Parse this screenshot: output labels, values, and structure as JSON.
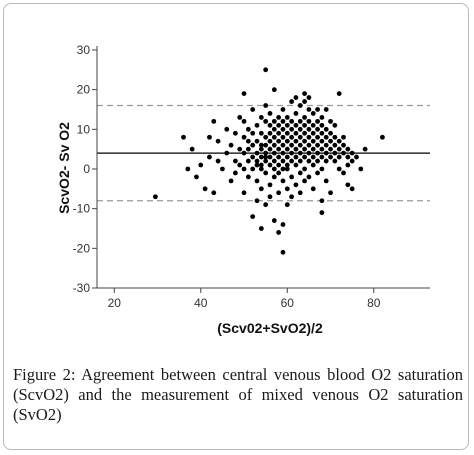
{
  "caption": "Figure 2: Agreement between central venous blood O2 saturation (ScvO2) and the measurement of mixed venous O2 saturation (SvO2)",
  "colors": {
    "points": "#000000",
    "mean_line": "#000000",
    "limit_lines": "#9a9a9a",
    "axis": "#444444"
  },
  "chart_data": {
    "type": "scatter",
    "title": "",
    "xlabel": "(Scv02+SvO2)/2",
    "ylabel": "ScvO2- Sv O2",
    "xlim": [
      16,
      93
    ],
    "ylim": [
      -30,
      31
    ],
    "xticks": [
      20,
      40,
      60,
      80
    ],
    "yticks": [
      -30,
      -20,
      -10,
      0,
      10,
      20,
      30
    ],
    "grid": false,
    "reference_lines": {
      "mean": 4,
      "upper_limit": 16,
      "lower_limit": -8
    },
    "points": [
      [
        29.5,
        -7
      ],
      [
        36,
        8
      ],
      [
        37,
        0
      ],
      [
        38,
        5
      ],
      [
        39,
        -2
      ],
      [
        40,
        1
      ],
      [
        41,
        -5
      ],
      [
        42,
        8
      ],
      [
        42,
        3
      ],
      [
        43,
        12
      ],
      [
        43,
        -6
      ],
      [
        44,
        2
      ],
      [
        44,
        7
      ],
      [
        45,
        0
      ],
      [
        46,
        4
      ],
      [
        46,
        10
      ],
      [
        47,
        -3
      ],
      [
        47,
        6
      ],
      [
        48,
        2
      ],
      [
        48,
        9
      ],
      [
        48,
        -1
      ],
      [
        49,
        5
      ],
      [
        49,
        13
      ],
      [
        49,
        1
      ],
      [
        50,
        19
      ],
      [
        50,
        0
      ],
      [
        50,
        4
      ],
      [
        50,
        8
      ],
      [
        50,
        -6
      ],
      [
        50,
        12
      ],
      [
        51,
        2
      ],
      [
        51,
        7
      ],
      [
        51,
        -2
      ],
      [
        51,
        10
      ],
      [
        51,
        5
      ],
      [
        52,
        -12
      ],
      [
        52,
        3
      ],
      [
        52,
        6
      ],
      [
        52,
        0
      ],
      [
        52,
        9
      ],
      [
        52,
        15
      ],
      [
        53,
        -8
      ],
      [
        53,
        1
      ],
      [
        53,
        4
      ],
      [
        53,
        7
      ],
      [
        53,
        11
      ],
      [
        53,
        -3
      ],
      [
        53,
        2
      ],
      [
        54,
        -15
      ],
      [
        54,
        3
      ],
      [
        54,
        6
      ],
      [
        54,
        9
      ],
      [
        54,
        1
      ],
      [
        54,
        -5
      ],
      [
        54,
        13
      ],
      [
        54,
        0
      ],
      [
        54,
        5
      ],
      [
        55,
        25
      ],
      [
        55,
        -9
      ],
      [
        55,
        4
      ],
      [
        55,
        8
      ],
      [
        55,
        12
      ],
      [
        55,
        2
      ],
      [
        55,
        -1
      ],
      [
        55,
        6
      ],
      [
        55,
        16
      ],
      [
        55,
        3
      ],
      [
        56,
        -4
      ],
      [
        56,
        5
      ],
      [
        56,
        9
      ],
      [
        56,
        1
      ],
      [
        56,
        14
      ],
      [
        56,
        7
      ],
      [
        56,
        -7
      ],
      [
        56,
        3
      ],
      [
        56,
        11
      ],
      [
        57,
        20
      ],
      [
        57,
        -13
      ],
      [
        57,
        2
      ],
      [
        57,
        6
      ],
      [
        57,
        10
      ],
      [
        57,
        0
      ],
      [
        57,
        4
      ],
      [
        57,
        8
      ],
      [
        57,
        -2
      ],
      [
        57,
        12
      ],
      [
        58,
        -16
      ],
      [
        58,
        3
      ],
      [
        58,
        7
      ],
      [
        58,
        1
      ],
      [
        58,
        11
      ],
      [
        58,
        5
      ],
      [
        58,
        -6
      ],
      [
        58,
        9
      ],
      [
        58,
        13
      ],
      [
        58,
        -1
      ],
      [
        59,
        -21
      ],
      [
        59,
        -14
      ],
      [
        59,
        4
      ],
      [
        59,
        8
      ],
      [
        59,
        0
      ],
      [
        59,
        12
      ],
      [
        59,
        2
      ],
      [
        59,
        6
      ],
      [
        59,
        -3
      ],
      [
        59,
        10
      ],
      [
        59,
        15
      ],
      [
        60,
        -9
      ],
      [
        60,
        5
      ],
      [
        60,
        1
      ],
      [
        60,
        9
      ],
      [
        60,
        3
      ],
      [
        60,
        13
      ],
      [
        60,
        -5
      ],
      [
        60,
        7
      ],
      [
        60,
        11
      ],
      [
        60,
        0
      ],
      [
        61,
        -2
      ],
      [
        61,
        4
      ],
      [
        61,
        8
      ],
      [
        61,
        12
      ],
      [
        61,
        6
      ],
      [
        61,
        2
      ],
      [
        61,
        17
      ],
      [
        61,
        -7
      ],
      [
        61,
        10
      ],
      [
        62,
        3
      ],
      [
        62,
        7
      ],
      [
        62,
        11
      ],
      [
        62,
        1
      ],
      [
        62,
        5
      ],
      [
        62,
        14
      ],
      [
        62,
        -4
      ],
      [
        62,
        9
      ],
      [
        62,
        18
      ],
      [
        63,
        -1
      ],
      [
        63,
        4
      ],
      [
        63,
        8
      ],
      [
        63,
        12
      ],
      [
        63,
        6
      ],
      [
        63,
        2
      ],
      [
        63,
        16
      ],
      [
        63,
        10
      ],
      [
        63,
        -6
      ],
      [
        64,
        19
      ],
      [
        64,
        5
      ],
      [
        64,
        9
      ],
      [
        64,
        3
      ],
      [
        64,
        13
      ],
      [
        64,
        7
      ],
      [
        64,
        0
      ],
      [
        64,
        11
      ],
      [
        64,
        -3
      ],
      [
        64,
        17
      ],
      [
        65,
        4
      ],
      [
        65,
        8
      ],
      [
        65,
        12
      ],
      [
        65,
        2
      ],
      [
        65,
        6
      ],
      [
        65,
        15
      ],
      [
        65,
        10
      ],
      [
        65,
        -2
      ],
      [
        65,
        18
      ],
      [
        66,
        3
      ],
      [
        66,
        7
      ],
      [
        66,
        11
      ],
      [
        66,
        5
      ],
      [
        66,
        9
      ],
      [
        66,
        1
      ],
      [
        66,
        14
      ],
      [
        66,
        -5
      ],
      [
        67,
        6
      ],
      [
        67,
        10
      ],
      [
        67,
        2
      ],
      [
        67,
        8
      ],
      [
        67,
        15
      ],
      [
        67,
        4
      ],
      [
        67,
        12
      ],
      [
        67,
        -1
      ],
      [
        68,
        5
      ],
      [
        68,
        9
      ],
      [
        68,
        3
      ],
      [
        68,
        7
      ],
      [
        68,
        13
      ],
      [
        68,
        0
      ],
      [
        68,
        -11
      ],
      [
        68,
        -8
      ],
      [
        68,
        11
      ],
      [
        69,
        4
      ],
      [
        69,
        8
      ],
      [
        69,
        6
      ],
      [
        69,
        10
      ],
      [
        69,
        15
      ],
      [
        69,
        2
      ],
      [
        69,
        -3
      ],
      [
        70,
        7
      ],
      [
        70,
        5
      ],
      [
        70,
        9
      ],
      [
        70,
        3
      ],
      [
        70,
        12
      ],
      [
        70,
        -6
      ],
      [
        71,
        6
      ],
      [
        71,
        4
      ],
      [
        71,
        8
      ],
      [
        71,
        2
      ],
      [
        71,
        11
      ],
      [
        72,
        5
      ],
      [
        72,
        7
      ],
      [
        72,
        3
      ],
      [
        72,
        19
      ],
      [
        72,
        0
      ],
      [
        73,
        6
      ],
      [
        73,
        4
      ],
      [
        73,
        8
      ],
      [
        73,
        -1
      ],
      [
        74,
        3
      ],
      [
        74,
        5
      ],
      [
        74,
        -4
      ],
      [
        74,
        1
      ],
      [
        75,
        4
      ],
      [
        75,
        2
      ],
      [
        75,
        -5
      ],
      [
        76,
        3
      ],
      [
        77,
        0
      ],
      [
        78,
        5
      ],
      [
        82,
        8
      ]
    ]
  }
}
